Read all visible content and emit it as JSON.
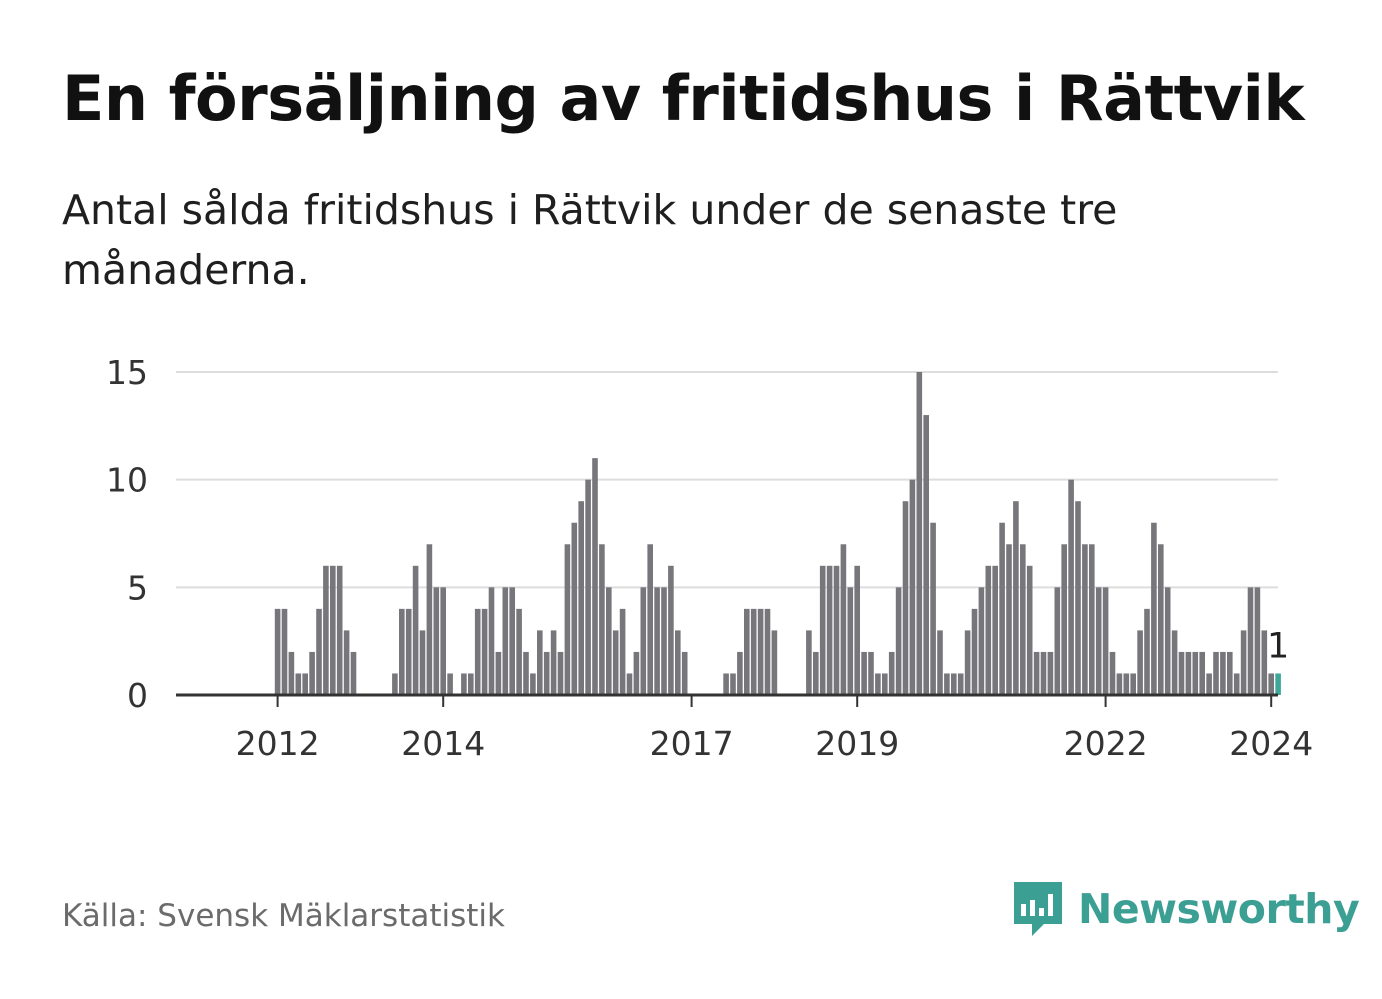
{
  "header": {
    "title": "En försäljning av fritidshus i Rättvik",
    "subtitle": "Antal sålda fritidshus i Rättvik under de senaste tre månaderna."
  },
  "footer": {
    "source": "Källa: Svensk Mäklarstatistik",
    "brand": "Newsworthy"
  },
  "colors": {
    "bar": "#77767b",
    "highlight": "#3ea79a",
    "grid": "#dddddd",
    "axis": "#333333",
    "brand": "#3c9f94"
  },
  "chart_data": {
    "type": "bar",
    "ylim": [
      0,
      15
    ],
    "yticks": [
      0,
      5,
      10,
      15
    ],
    "xticks": [
      "2012",
      "2014",
      "2017",
      "2019",
      "2022",
      "2024"
    ],
    "xtick_indices": [
      7,
      31,
      67,
      91,
      127,
      151
    ],
    "grid": true,
    "highlight_label": "1",
    "values": [
      0,
      0,
      0,
      0,
      0,
      0,
      0,
      4,
      4,
      2,
      1,
      1,
      2,
      4,
      6,
      6,
      6,
      3,
      2,
      0,
      0,
      0,
      0,
      0,
      1,
      4,
      4,
      6,
      3,
      7,
      5,
      5,
      1,
      0,
      1,
      1,
      4,
      4,
      5,
      2,
      5,
      5,
      4,
      2,
      1,
      3,
      2,
      3,
      2,
      7,
      8,
      9,
      10,
      11,
      7,
      5,
      3,
      4,
      1,
      2,
      5,
      7,
      5,
      5,
      6,
      3,
      2,
      0,
      0,
      0,
      0,
      0,
      1,
      1,
      2,
      4,
      4,
      4,
      4,
      3,
      0,
      0,
      0,
      0,
      3,
      2,
      6,
      6,
      6,
      7,
      5,
      6,
      2,
      2,
      1,
      1,
      2,
      5,
      9,
      10,
      15,
      13,
      8,
      3,
      1,
      1,
      1,
      3,
      4,
      5,
      6,
      6,
      8,
      7,
      9,
      7,
      6,
      2,
      2,
      2,
      5,
      7,
      10,
      9,
      7,
      7,
      5,
      5,
      2,
      1,
      1,
      1,
      3,
      4,
      8,
      7,
      5,
      3,
      2,
      2,
      2,
      2,
      1,
      2,
      2,
      2,
      1,
      3,
      5,
      5,
      3,
      1,
      1
    ]
  }
}
